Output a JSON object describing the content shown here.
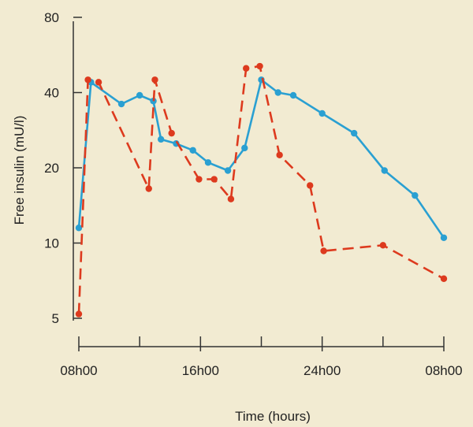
{
  "chart_data": {
    "type": "line",
    "title": "",
    "xlabel": "Time (hours)",
    "ylabel": "Free insulin (mU/l)",
    "y_scale": "log",
    "ylim": [
      5,
      80
    ],
    "y_ticks": [
      5,
      10,
      20,
      40,
      80
    ],
    "x_tick_labels": [
      "08h00",
      "16h00",
      "24h00",
      "08h00"
    ],
    "x_tick_hours": [
      8,
      16,
      24,
      32
    ],
    "x_minor_tick_hours": [
      12,
      20,
      28
    ],
    "xlim": [
      8,
      32
    ],
    "grid": false,
    "series": [
      {
        "style": "solid",
        "color": "#2aa0d2",
        "points": [
          [
            8.0,
            11.5
          ],
          [
            8.8,
            44
          ],
          [
            10.8,
            36
          ],
          [
            12.0,
            39
          ],
          [
            12.9,
            37
          ],
          [
            13.4,
            26
          ],
          [
            14.4,
            25
          ],
          [
            15.5,
            23.5
          ],
          [
            16.5,
            21
          ],
          [
            17.8,
            19.5
          ],
          [
            18.9,
            24
          ],
          [
            20.0,
            45
          ],
          [
            21.1,
            40
          ],
          [
            22.1,
            39
          ],
          [
            24.0,
            33
          ],
          [
            26.1,
            27.5
          ],
          [
            28.1,
            19.5
          ],
          [
            30.1,
            15.5
          ],
          [
            32.0,
            10.5
          ]
        ]
      },
      {
        "style": "dashed",
        "color": "#dd3a1e",
        "points": [
          [
            8.0,
            5.2
          ],
          [
            8.6,
            45
          ],
          [
            9.3,
            44
          ],
          [
            12.6,
            16.5
          ],
          [
            13.0,
            45
          ],
          [
            14.1,
            27.5
          ],
          [
            15.9,
            18
          ],
          [
            16.9,
            18
          ],
          [
            18.0,
            15
          ],
          [
            19.0,
            50
          ],
          [
            19.9,
            51
          ],
          [
            21.2,
            22.5
          ],
          [
            23.2,
            17
          ],
          [
            24.1,
            9.3
          ],
          [
            28.0,
            9.8
          ],
          [
            32.0,
            7.2
          ]
        ]
      }
    ]
  }
}
